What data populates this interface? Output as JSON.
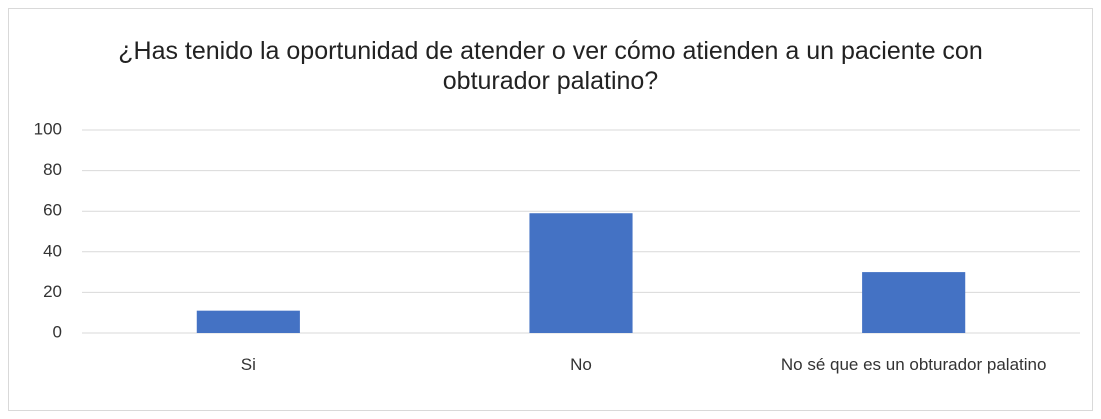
{
  "chart_data": {
    "type": "bar",
    "title": "¿Has tenido la oportunidad de atender o ver cómo atienden a un paciente con obturador palatino?",
    "categories": [
      "Si",
      "No",
      "No sé que es un obturador palatino"
    ],
    "values": [
      11,
      59,
      30
    ],
    "color": "#4472c4",
    "ylim": [
      0,
      100
    ],
    "yticks": [
      0,
      20,
      40,
      60,
      80,
      100
    ],
    "grid": true
  }
}
